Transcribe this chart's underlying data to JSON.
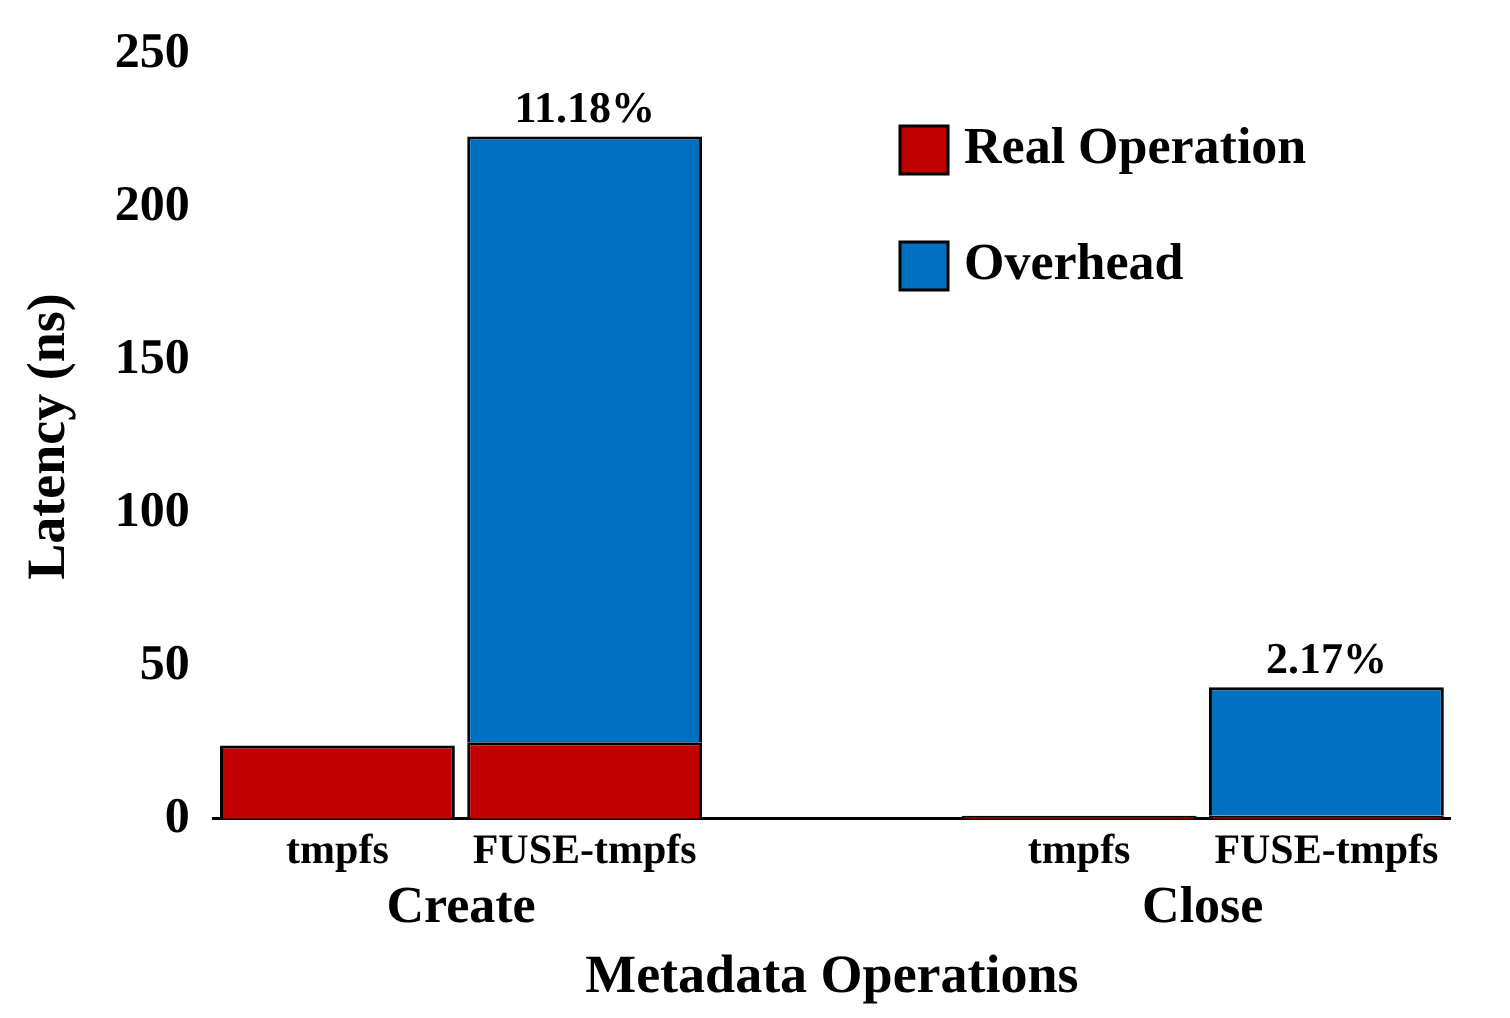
{
  "chart_data": {
    "type": "bar",
    "stacked": true,
    "xlabel": "Metadata Operations",
    "ylabel": "Latency (ns)",
    "categories": [
      "tmpfs",
      "FUSE-tmpfs",
      null,
      "tmpfs",
      "FUSE-tmpfs"
    ],
    "annotations": [
      "Create",
      "Close",
      {
        "text": "11.18%",
        "y": 223
      },
      {
        "text": "2.17%",
        "y": 43
      }
    ],
    "series": [
      {
        "name": "Real Operation",
        "color": "#c00000",
        "values": [
          24,
          25,
          null,
          1,
          1
        ]
      },
      {
        "name": "Overhead",
        "color": "#0070c0",
        "values": [
          null,
          198,
          null,
          null,
          42
        ]
      }
    ],
    "ylim": [
      0,
      250
    ],
    "yticks": [
      0,
      50,
      100,
      150,
      200,
      250
    ],
    "grid": false,
    "legend": "top right"
  }
}
